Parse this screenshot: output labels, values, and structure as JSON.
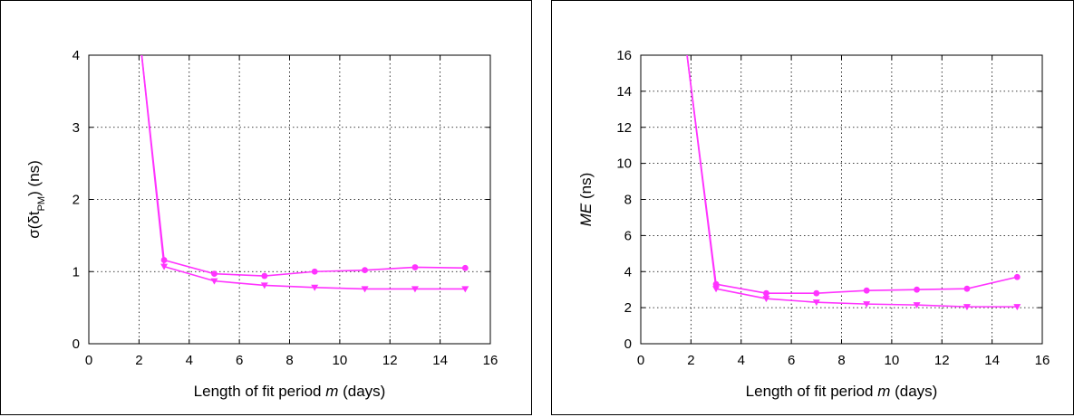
{
  "colors": {
    "series": "#ff33ff",
    "axis": "#000000"
  },
  "chart_data": [
    {
      "type": "line",
      "xlabel": "Length of fit period m (days)",
      "ylabel": "σ(δt_PM) (ns)",
      "xlim": [
        0,
        16
      ],
      "ylim": [
        0,
        4
      ],
      "xticks": [
        "0",
        "2",
        "4",
        "6",
        "8",
        "10",
        "12",
        "14",
        "16"
      ],
      "yticks": [
        "0",
        "1",
        "2",
        "3",
        "4"
      ],
      "grid": true,
      "series": [
        {
          "marker": "circle",
          "x": [
            2,
            3,
            5,
            7,
            9,
            11,
            13,
            15
          ],
          "y": [
            4.35,
            1.16,
            0.97,
            0.94,
            1.0,
            1.02,
            1.06,
            1.05
          ]
        },
        {
          "marker": "triangle-down",
          "x": [
            2,
            3,
            5,
            7,
            9,
            11,
            13,
            15
          ],
          "y": [
            4.35,
            1.07,
            0.87,
            0.81,
            0.78,
            0.76,
            0.76,
            0.76
          ]
        }
      ]
    },
    {
      "type": "line",
      "xlabel": "Length of fit period m (days)",
      "ylabel": "ME (ns)",
      "xlim": [
        0,
        16
      ],
      "ylim": [
        0,
        16
      ],
      "xticks": [
        "0",
        "2",
        "4",
        "6",
        "8",
        "10",
        "12",
        "14",
        "16"
      ],
      "yticks": [
        "0",
        "2",
        "4",
        "6",
        "8",
        "10",
        "12",
        "14",
        "16"
      ],
      "grid": true,
      "series": [
        {
          "marker": "circle",
          "x": [
            1.8,
            3,
            5,
            7,
            9,
            11,
            13,
            15
          ],
          "y": [
            16.5,
            3.3,
            2.8,
            2.8,
            2.95,
            3.0,
            3.05,
            3.7
          ]
        },
        {
          "marker": "triangle-down",
          "x": [
            1.8,
            3,
            5,
            7,
            9,
            11,
            13,
            15
          ],
          "y": [
            16.5,
            3.05,
            2.5,
            2.3,
            2.2,
            2.15,
            2.05,
            2.05
          ]
        }
      ]
    }
  ]
}
